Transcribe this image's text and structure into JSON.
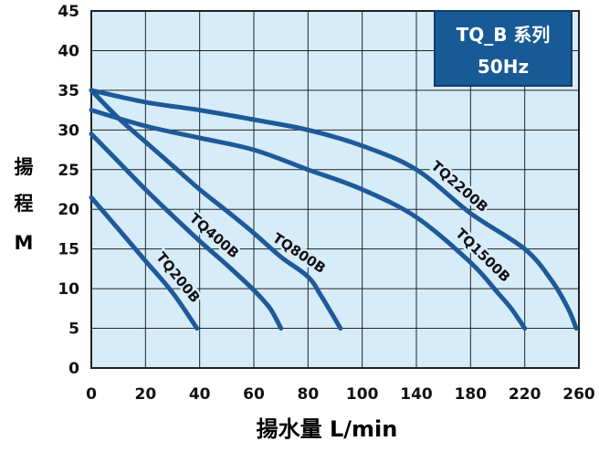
{
  "chart_data": {
    "type": "line",
    "title_box": {
      "line1": "TQ_B 系列",
      "line2": "50Hz"
    },
    "ylabel": [
      "揚",
      "程",
      "M"
    ],
    "xlabel": "揚水量 L/min",
    "x_tick_labels": [
      "0",
      "20",
      "40",
      "60",
      "80",
      "100",
      "140",
      "180",
      "220",
      "260"
    ],
    "y_ticks": [
      0,
      5,
      10,
      15,
      20,
      25,
      30,
      35,
      40,
      45
    ],
    "ylim": [
      0,
      45
    ],
    "grid": true,
    "colors": {
      "plot_bg": "#d7ecf9",
      "curve": "#1e5a99",
      "grid": "#222222",
      "box_bg": "#175a96",
      "box_text": "#ffffff"
    },
    "series": [
      {
        "name": "TQ200B",
        "points": [
          [
            0,
            21.5
          ],
          [
            10,
            17.5
          ],
          [
            20,
            13.5
          ],
          [
            30,
            9.5
          ],
          [
            39,
            5
          ]
        ]
      },
      {
        "name": "TQ400B",
        "points": [
          [
            0,
            29.5
          ],
          [
            10,
            26
          ],
          [
            20,
            22.5
          ],
          [
            30,
            19.2
          ],
          [
            40,
            16
          ],
          [
            50,
            13
          ],
          [
            60,
            9.8
          ],
          [
            66,
            7.5
          ],
          [
            70,
            5
          ]
        ]
      },
      {
        "name": "TQ800B",
        "points": [
          [
            0,
            35
          ],
          [
            10,
            31.5
          ],
          [
            20,
            28.5
          ],
          [
            30,
            25.5
          ],
          [
            40,
            22.5
          ],
          [
            50,
            19.8
          ],
          [
            60,
            17
          ],
          [
            70,
            14
          ],
          [
            80,
            11.5
          ],
          [
            85,
            9
          ],
          [
            92,
            5
          ]
        ]
      },
      {
        "name": "TQ1500B",
        "points": [
          [
            0,
            32.5
          ],
          [
            20,
            30.5
          ],
          [
            40,
            29
          ],
          [
            60,
            27.5
          ],
          [
            80,
            25
          ],
          [
            100,
            22.5
          ],
          [
            140,
            19
          ],
          [
            180,
            13.3
          ],
          [
            200,
            9.5
          ],
          [
            210,
            7.5
          ],
          [
            220,
            5
          ]
        ]
      },
      {
        "name": "TQ2200B",
        "points": [
          [
            0,
            35
          ],
          [
            20,
            33.5
          ],
          [
            40,
            32.5
          ],
          [
            60,
            31.3
          ],
          [
            80,
            30
          ],
          [
            100,
            28
          ],
          [
            140,
            25
          ],
          [
            180,
            19.5
          ],
          [
            220,
            15
          ],
          [
            240,
            11
          ],
          [
            252,
            7.5
          ],
          [
            258,
            5
          ]
        ]
      }
    ]
  }
}
